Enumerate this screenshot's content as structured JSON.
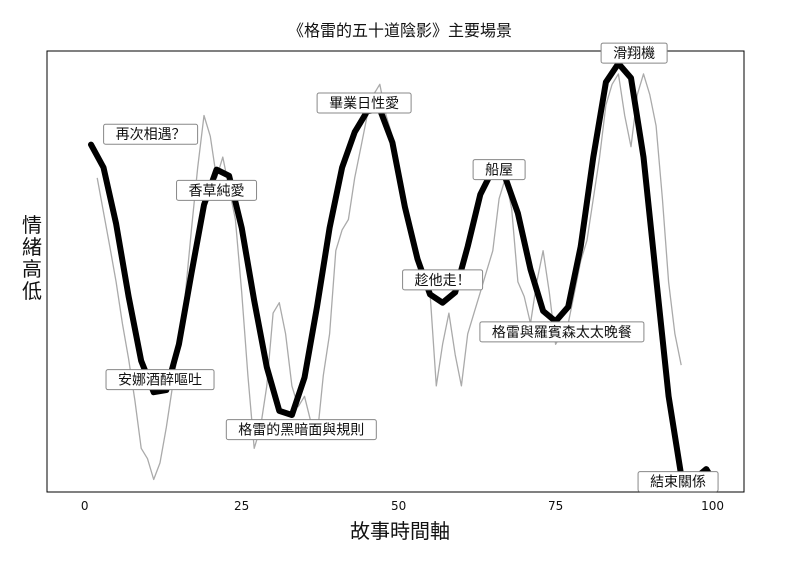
{
  "chart_data": {
    "type": "line",
    "title": "《格雷的五十道陰影》主要場景",
    "xlabel": "故事時間軸",
    "ylabel": "情緒高低",
    "xlim": [
      -6,
      105
    ],
    "ylim": [
      -1.06,
      1.06
    ],
    "xticks": [
      0,
      25,
      50,
      75,
      100
    ],
    "grid": false,
    "colors": {
      "smooth": "#000000",
      "raw": "#aaaaaa"
    },
    "series": [
      {
        "role": "smoothed",
        "x": [
          1,
          3,
          5,
          7,
          9,
          11,
          13,
          15,
          17,
          19,
          21,
          23,
          25,
          27,
          29,
          31,
          33,
          35,
          37,
          39,
          41,
          43,
          45,
          47,
          49,
          51,
          53,
          55,
          57,
          59,
          61,
          63,
          65,
          67,
          69,
          71,
          73,
          75,
          77,
          79,
          81,
          83,
          85,
          87,
          89,
          91,
          93,
          95,
          97,
          99,
          100
        ],
        "y": [
          0.61,
          0.5,
          0.23,
          -0.12,
          -0.43,
          -0.58,
          -0.57,
          -0.35,
          -0.01,
          0.32,
          0.49,
          0.46,
          0.21,
          -0.14,
          -0.46,
          -0.67,
          -0.69,
          -0.51,
          -0.17,
          0.21,
          0.5,
          0.67,
          0.77,
          0.78,
          0.62,
          0.31,
          0.06,
          -0.11,
          -0.15,
          -0.1,
          0.12,
          0.37,
          0.49,
          0.45,
          0.28,
          0.01,
          -0.19,
          -0.24,
          -0.17,
          0.12,
          0.55,
          0.91,
          1.0,
          0.93,
          0.55,
          -0.03,
          -0.6,
          -0.98,
          -1.0,
          -0.95,
          -1.0
        ]
      },
      {
        "role": "raw",
        "x": [
          2,
          4,
          5,
          6,
          7,
          8,
          9,
          10,
          11,
          12,
          13,
          14,
          15,
          16,
          17,
          18,
          19,
          20,
          21,
          22,
          23,
          24,
          25,
          26,
          27,
          28,
          29,
          30,
          31,
          32,
          33,
          34,
          35,
          36,
          37,
          38,
          39,
          40,
          41,
          42,
          43,
          44,
          45,
          46,
          47,
          48,
          49,
          50,
          51,
          52,
          53,
          54,
          55,
          56,
          57,
          58,
          59,
          60,
          61,
          62,
          63,
          64,
          65,
          66,
          67,
          68,
          69,
          70,
          71,
          72,
          73,
          74,
          75,
          76,
          77,
          78,
          79,
          80,
          81,
          82,
          83,
          84,
          85,
          86,
          87,
          88,
          89,
          90,
          91,
          92,
          93,
          94,
          95
        ],
        "y": [
          0.45,
          0.12,
          -0.05,
          -0.25,
          -0.42,
          -0.62,
          -0.85,
          -0.9,
          -1.0,
          -0.92,
          -0.75,
          -0.55,
          -0.35,
          -0.12,
          0.2,
          0.5,
          0.75,
          0.65,
          0.45,
          0.55,
          0.4,
          0.25,
          -0.1,
          -0.5,
          -0.85,
          -0.75,
          -0.55,
          -0.2,
          -0.15,
          -0.3,
          -0.55,
          -0.65,
          -0.6,
          -0.72,
          -0.8,
          -0.5,
          -0.3,
          0.1,
          0.2,
          0.25,
          0.45,
          0.6,
          0.75,
          0.85,
          0.9,
          0.75,
          0.65,
          0.45,
          0.35,
          0.15,
          0.05,
          0.0,
          -0.1,
          -0.55,
          -0.35,
          -0.2,
          -0.4,
          -0.55,
          -0.3,
          -0.2,
          -0.1,
          0.0,
          0.1,
          0.35,
          0.45,
          0.3,
          -0.05,
          -0.12,
          -0.25,
          -0.05,
          0.1,
          -0.1,
          -0.35,
          -0.3,
          -0.25,
          -0.1,
          0.05,
          0.15,
          0.35,
          0.55,
          0.8,
          0.9,
          0.95,
          0.75,
          0.6,
          0.85,
          0.95,
          0.85,
          0.7,
          0.35,
          -0.05,
          -0.3,
          -0.45
        ]
      }
    ],
    "annotations": [
      {
        "label": "再次相遇？",
        "x": 10.5,
        "y": 0.66
      },
      {
        "label": "安娜酒醉嘔吐",
        "x": 12,
        "y": -0.52
      },
      {
        "label": "香草純愛",
        "x": 21,
        "y": 0.39
      },
      {
        "label": "格雷的黑暗面與規則",
        "x": 34.5,
        "y": -0.76
      },
      {
        "label": "畢業日性愛",
        "x": 44.5,
        "y": 0.81
      },
      {
        "label": "趁他走！",
        "x": 57,
        "y": -0.04
      },
      {
        "label": "船屋",
        "x": 66,
        "y": 0.49
      },
      {
        "label": "格雷與羅賓森太太晚餐",
        "x": 76,
        "y": -0.29
      },
      {
        "label": "滑翔機",
        "x": 87.5,
        "y": 1.05
      },
      {
        "label": "結束關係",
        "x": 94.5,
        "y": -1.01
      }
    ]
  }
}
